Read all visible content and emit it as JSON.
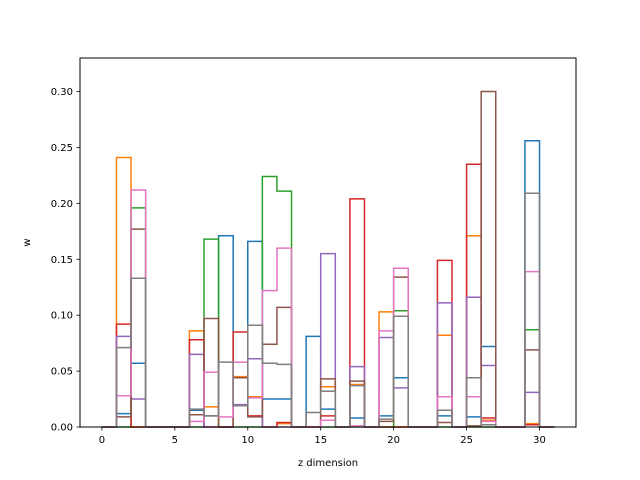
{
  "chart_data": {
    "type": "histogram-step",
    "xlabel": "z dimension",
    "ylabel": "w",
    "xlim": [
      -1.5,
      32.5
    ],
    "ylim": [
      0,
      0.33
    ],
    "xticks": [
      0,
      5,
      10,
      15,
      20,
      25,
      30
    ],
    "yticks": [
      0.0,
      0.05,
      0.1,
      0.15,
      0.2,
      0.25,
      0.3
    ],
    "xtick_labels": [
      "0",
      "5",
      "10",
      "15",
      "20",
      "25",
      "30"
    ],
    "ytick_labels": [
      "0.00",
      "0.05",
      "0.10",
      "0.15",
      "0.20",
      "0.25",
      "0.30"
    ],
    "bin_edges": [
      0,
      1,
      2,
      3,
      4,
      5,
      6,
      7,
      8,
      9,
      10,
      11,
      12,
      13,
      14,
      15,
      16,
      17,
      18,
      19,
      20,
      21,
      22,
      23,
      24,
      25,
      26,
      27,
      28,
      29,
      30,
      31
    ],
    "series": [
      {
        "color": "#1f77b4",
        "values": [
          0,
          0.012,
          0.057,
          0,
          0,
          0,
          0.015,
          0.01,
          0.171,
          0.019,
          0.166,
          0.025,
          0.025,
          0,
          0.081,
          0.016,
          0,
          0.008,
          0,
          0.01,
          0.044,
          0,
          0,
          0.01,
          0,
          0.009,
          0.072,
          0,
          0,
          0.256,
          0
        ]
      },
      {
        "color": "#ff7f0e",
        "values": [
          0,
          0.241,
          0,
          0,
          0,
          0,
          0.086,
          0.018,
          0,
          0.045,
          0.027,
          0,
          0.003,
          0,
          0,
          0.036,
          0,
          0.038,
          0,
          0.103,
          0,
          0,
          0,
          0.082,
          0,
          0.171,
          0.006,
          0,
          0,
          0.003,
          0
        ]
      },
      {
        "color": "#2ca02c",
        "values": [
          0,
          0,
          0.196,
          0,
          0,
          0,
          0,
          0.168,
          0,
          0,
          0,
          0.224,
          0.211,
          0,
          0,
          0,
          0,
          0,
          0,
          0,
          0.104,
          0,
          0,
          0,
          0,
          0,
          0,
          0,
          0,
          0.087,
          0
        ]
      },
      {
        "color": "#d62728",
        "values": [
          0,
          0.092,
          0,
          0,
          0,
          0,
          0.078,
          0,
          0,
          0.085,
          0.01,
          0,
          0.004,
          0,
          0,
          0.01,
          0,
          0.204,
          0,
          0,
          0,
          0,
          0,
          0.149,
          0,
          0.235,
          0.008,
          0,
          0,
          0.002,
          0
        ]
      },
      {
        "color": "#9467bd",
        "values": [
          0,
          0.081,
          0.025,
          0,
          0,
          0,
          0.065,
          0,
          0,
          0.02,
          0.061,
          0,
          0,
          0,
          0,
          0.155,
          0,
          0.054,
          0,
          0.08,
          0.035,
          0,
          0,
          0.111,
          0,
          0.116,
          0.055,
          0,
          0,
          0.031,
          0
        ]
      },
      {
        "color": "#8c564b",
        "values": [
          0,
          0.009,
          0.177,
          0,
          0,
          0,
          0.011,
          0.097,
          0,
          0.044,
          0.009,
          0.074,
          0.107,
          0,
          0,
          0.043,
          0,
          0.041,
          0,
          0.005,
          0.134,
          0,
          0,
          0.004,
          0,
          0.001,
          0.3,
          0,
          0,
          0.069,
          0
        ]
      },
      {
        "color": "#e377c2",
        "values": [
          0,
          0.028,
          0.212,
          0,
          0,
          0,
          0.005,
          0.049,
          0.009,
          0.058,
          0.026,
          0.122,
          0.16,
          0,
          0,
          0.006,
          0,
          0.001,
          0,
          0.086,
          0.142,
          0,
          0,
          0.027,
          0,
          0.027,
          0.005,
          0,
          0,
          0.139,
          0
        ]
      },
      {
        "color": "#7f7f7f",
        "values": [
          0,
          0.071,
          0.133,
          0,
          0,
          0,
          0.016,
          0.01,
          0.058,
          0.019,
          0.091,
          0.057,
          0.056,
          0,
          0.013,
          0.032,
          0,
          0.037,
          0,
          0.007,
          0.099,
          0,
          0,
          0.015,
          0,
          0.044,
          0.002,
          0,
          0,
          0.209,
          0
        ]
      }
    ]
  }
}
